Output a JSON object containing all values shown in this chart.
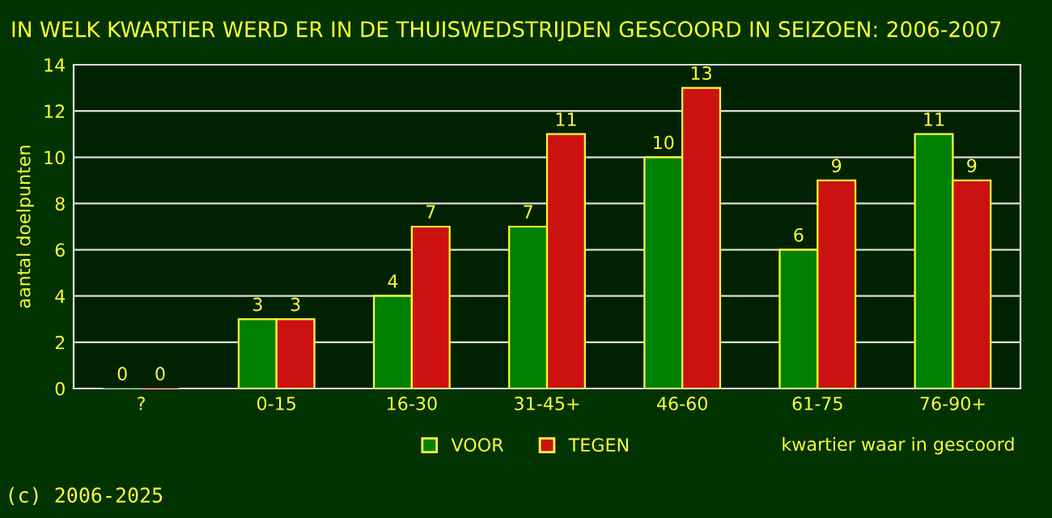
{
  "chart_data": {
    "type": "bar",
    "title": "IN WELK KWARTIER WERD ER IN DE THUISWEDSTRIJDEN GESCOORD IN SEIZOEN: 2006-2007",
    "xlabel": "kwartier waar in gescoord",
    "ylabel": "aantal doelpunten",
    "categories": [
      "?",
      "0-15",
      "16-30",
      "31-45+",
      "46-60",
      "61-75",
      "76-90+"
    ],
    "series": [
      {
        "name": "VOOR",
        "color": "#008000",
        "values": [
          0,
          3,
          4,
          7,
          10,
          6,
          11
        ]
      },
      {
        "name": "TEGEN",
        "color": "#cc1111",
        "values": [
          0,
          3,
          7,
          11,
          13,
          9,
          9
        ]
      }
    ],
    "ylim": [
      0,
      14
    ],
    "yticks": [
      0,
      2,
      4,
      6,
      8,
      10,
      12,
      14
    ],
    "grid": "y",
    "legend": "bottom",
    "data_labels": true,
    "annotations": [
      "(c) 2006-2025"
    ]
  }
}
